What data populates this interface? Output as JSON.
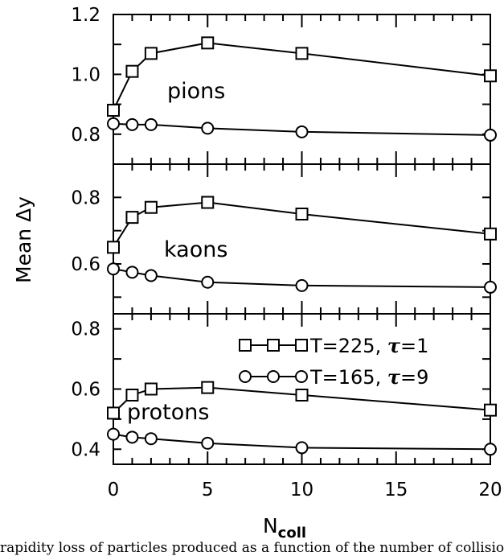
{
  "chart_data": {
    "type": "line",
    "xlabel": "N",
    "xlabel_sub": "coll",
    "ylabel": "Mean  Δy",
    "x_ticks": [
      "0",
      "5",
      "10",
      "15",
      "20"
    ],
    "xlim": [
      0,
      20
    ],
    "legend": [
      {
        "label": "T=225, ",
        "tau": "τ",
        "tau_value": "=1",
        "marker": "square"
      },
      {
        "label": "T=165, ",
        "tau": "τ",
        "tau_value": "=9",
        "marker": "circle"
      }
    ],
    "panels": [
      {
        "label": "pions",
        "ylim": [
          0.7,
          1.2
        ],
        "y_ticks": [
          "0.8",
          "1.0",
          "1.2"
        ],
        "series": [
          {
            "marker": "square",
            "x": [
              0,
              1,
              2,
              5,
              10,
              20
            ],
            "y": [
              0.88,
              1.01,
              1.07,
              1.105,
              1.07,
              0.995
            ]
          },
          {
            "marker": "circle",
            "x": [
              0,
              1,
              2,
              5,
              10,
              20
            ],
            "y": [
              0.835,
              0.832,
              0.832,
              0.82,
              0.808,
              0.797
            ]
          }
        ]
      },
      {
        "label": "kaons",
        "ylim": [
          0.45,
          0.9
        ],
        "y_ticks": [
          "0.6",
          "0.8"
        ],
        "series": [
          {
            "marker": "square",
            "x": [
              0,
              1,
              2,
              5,
              10,
              20
            ],
            "y": [
              0.65,
              0.74,
              0.77,
              0.785,
              0.75,
              0.69
            ]
          },
          {
            "marker": "circle",
            "x": [
              0,
              1,
              2,
              5,
              10,
              20
            ],
            "y": [
              0.585,
              0.575,
              0.565,
              0.545,
              0.535,
              0.53
            ]
          }
        ]
      },
      {
        "label": "protons",
        "ylim": [
          0.35,
          0.85
        ],
        "y_ticks": [
          "0.4",
          "0.6",
          "0.8"
        ],
        "series": [
          {
            "marker": "square",
            "x": [
              0,
              1,
              2,
              5,
              10,
              20
            ],
            "y": [
              0.52,
              0.58,
              0.6,
              0.605,
              0.58,
              0.53
            ]
          },
          {
            "marker": "circle",
            "x": [
              0,
              1,
              2,
              5,
              10,
              20
            ],
            "y": [
              0.45,
              0.44,
              0.435,
              0.42,
              0.405,
              0.4
            ]
          }
        ]
      }
    ]
  },
  "caption": "rapidity loss of particles produced as a function of the number of collisions"
}
